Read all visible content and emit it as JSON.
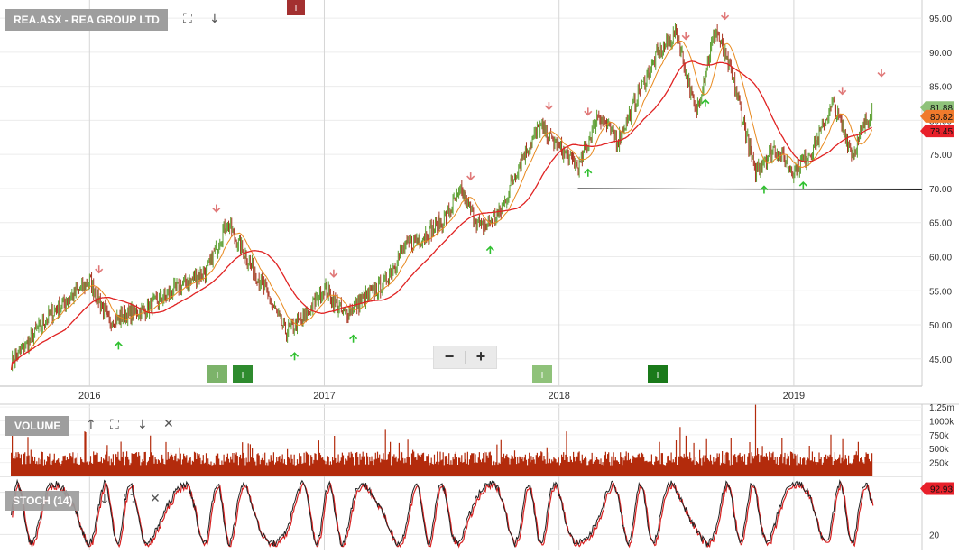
{
  "title": "REA.ASX - REA GROUP LTD",
  "panels": {
    "volume_label": "VOLUME",
    "stoch_label": "STOCH (14)"
  },
  "icons": {
    "expand": "expand-icon",
    "down": "arrow-down-icon",
    "up": "arrow-up-icon",
    "close": "close-icon"
  },
  "zoom": {
    "minus": "−",
    "plus": "+"
  },
  "markers": {
    "i": "I"
  },
  "colors": {
    "up_candle": "#5a9e2f",
    "down_candle": "#a8331f",
    "ma_fast": "#e8891e",
    "ma_slow": "#e02323",
    "volume": "#b32b0c",
    "sell_arrow": "#e07878",
    "buy_arrow": "#30c030",
    "support": "#222222",
    "tag_last": "#8fc27a",
    "tag_ma_fast": "#f07a2c",
    "tag_ma_slow": "#e8202a"
  },
  "chart_data": [
    {
      "type": "candlestick",
      "title": "REA.ASX - REA GROUP LTD",
      "x_ticks": [
        "2016",
        "2017",
        "2018",
        "2019"
      ],
      "y_ticks": [
        "45.00",
        "50.00",
        "55.00",
        "60.00",
        "65.00",
        "70.00",
        "75.00",
        "80.00",
        "85.00",
        "90.00",
        "95.00"
      ],
      "ylim": [
        41,
        97
      ],
      "series": [
        {
          "name": "Price",
          "points": [
            {
              "x": "2015-09",
              "y": 44.5
            },
            {
              "x": "2015-11",
              "y": 51.5
            },
            {
              "x": "2016-01",
              "y": 56.5
            },
            {
              "x": "2016-02",
              "y": 50.5
            },
            {
              "x": "2016-04",
              "y": 52.5
            },
            {
              "x": "2016-05",
              "y": 54.5
            },
            {
              "x": "2016-07",
              "y": 58.0
            },
            {
              "x": "2016-08",
              "y": 65.0
            },
            {
              "x": "2016-09",
              "y": 60.0
            },
            {
              "x": "2016-10",
              "y": 55.0
            },
            {
              "x": "2016-11",
              "y": 49.0
            },
            {
              "x": "2016-12",
              "y": 51.0
            },
            {
              "x": "2017-01",
              "y": 55.5
            },
            {
              "x": "2017-02",
              "y": 51.5
            },
            {
              "x": "2017-04",
              "y": 56.0
            },
            {
              "x": "2017-05",
              "y": 61.0
            },
            {
              "x": "2017-07",
              "y": 65.0
            },
            {
              "x": "2017-08",
              "y": 69.5
            },
            {
              "x": "2017-09",
              "y": 64.0
            },
            {
              "x": "2017-10",
              "y": 66.5
            },
            {
              "x": "2017-11",
              "y": 74.0
            },
            {
              "x": "2017-12",
              "y": 79.0
            },
            {
              "x": "2018-01",
              "y": 76.0
            },
            {
              "x": "2018-02",
              "y": 73.0
            },
            {
              "x": "2018-03",
              "y": 81.0
            },
            {
              "x": "2018-04",
              "y": 77.0
            },
            {
              "x": "2018-05",
              "y": 83.5
            },
            {
              "x": "2018-06",
              "y": 89.5
            },
            {
              "x": "2018-07",
              "y": 93.0
            },
            {
              "x": "2018-08",
              "y": 81.0
            },
            {
              "x": "2018-09",
              "y": 93.5
            },
            {
              "x": "2018-10",
              "y": 85.0
            },
            {
              "x": "2018-11",
              "y": 72.5
            },
            {
              "x": "2018-12",
              "y": 76.0
            },
            {
              "x": "2019-01",
              "y": 72.5
            },
            {
              "x": "2019-02",
              "y": 76.0
            },
            {
              "x": "2019-03",
              "y": 82.5
            },
            {
              "x": "2019-04",
              "y": 75.0
            },
            {
              "x": "2019-05",
              "y": 81.8
            }
          ]
        },
        {
          "name": "MA fast",
          "points": []
        },
        {
          "name": "MA slow",
          "points": []
        }
      ],
      "support_level": 70.0,
      "tags": [
        {
          "label": "81.88",
          "y": 81.88
        },
        {
          "label": "80.82",
          "y": 80.6
        },
        {
          "label": "78.45",
          "y": 78.45
        }
      ],
      "sell_signals": [
        "2016-01",
        "2016-07",
        "2017-01",
        "2017-08",
        "2017-12",
        "2018-02",
        "2018-07",
        "2018-09",
        "2019-03",
        "2019-05"
      ],
      "buy_signals": [
        "2016-02",
        "2016-11",
        "2017-02",
        "2017-09",
        "2018-02",
        "2018-08",
        "2018-11",
        "2019-01"
      ]
    },
    {
      "type": "bar",
      "title": "VOLUME",
      "y_ticks": [
        "250k",
        "500k",
        "750k",
        "1000k",
        "1.25m"
      ],
      "ylim": [
        0,
        1300000
      ]
    },
    {
      "type": "line",
      "title": "STOCH (14)",
      "y_ticks": [
        "20"
      ],
      "ylim": [
        0,
        100
      ],
      "last_value": "92.93"
    }
  ]
}
